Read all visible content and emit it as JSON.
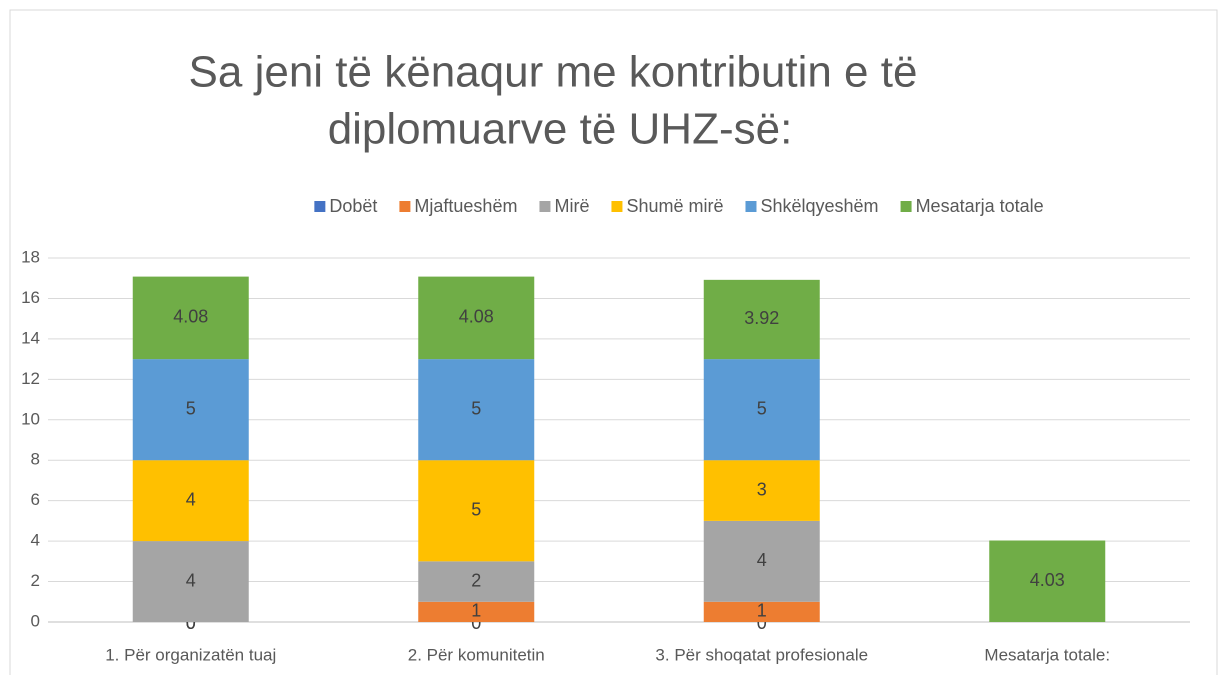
{
  "chart_data": {
    "type": "stacked_bar",
    "title": [
      "Sa jeni të kënaqur me kontributin e të",
      "diplomuarve të UHZ-së:"
    ],
    "categories": [
      "1. Për organizatën tuaj",
      "2. Për komunitetin",
      "3. Për shoqatat profesionale",
      "Mesatarja totale:"
    ],
    "series": [
      {
        "name": "Dobët",
        "color": "#4472c4",
        "values": [
          0,
          0,
          0,
          null
        ]
      },
      {
        "name": "Mjaftueshëm",
        "color": "#ed7d31",
        "values": [
          0,
          1,
          1,
          null
        ]
      },
      {
        "name": "Mirë",
        "color": "#a5a5a5",
        "values": [
          4,
          2,
          4,
          null
        ]
      },
      {
        "name": "Shumë mirë",
        "color": "#ffc000",
        "values": [
          4,
          5,
          3,
          null
        ]
      },
      {
        "name": "Shkëlqyeshëm",
        "color": "#5b9bd5",
        "values": [
          5,
          5,
          5,
          null
        ]
      },
      {
        "name": "Mesatarja totale",
        "color": "#70ad47",
        "values": [
          4.08,
          4.08,
          3.92,
          4.03
        ]
      }
    ],
    "ylim": [
      0,
      18
    ],
    "yticks": [
      0,
      2,
      4,
      6,
      8,
      10,
      12,
      14,
      16,
      18
    ],
    "grid": true,
    "legend": "top"
  }
}
